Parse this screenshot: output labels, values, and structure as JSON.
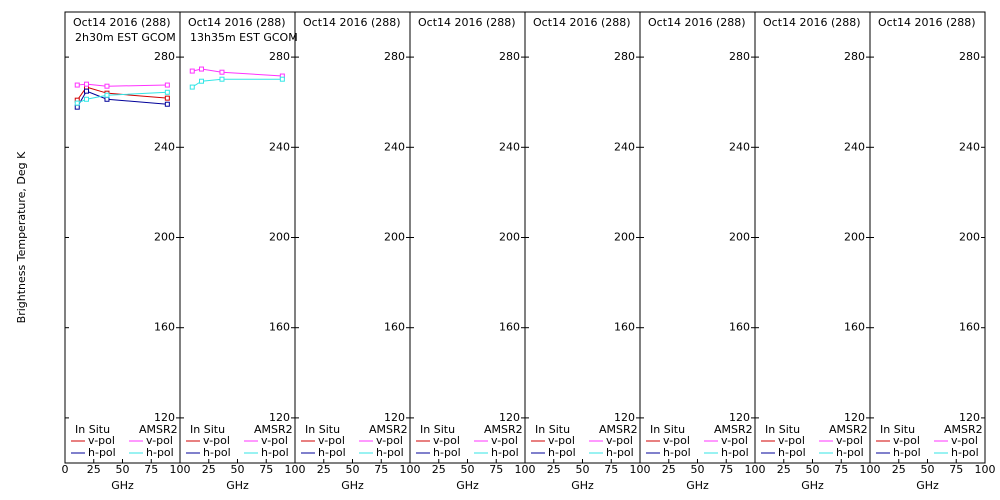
{
  "chart_data": [
    {
      "type": "line",
      "title": "Oct14 2016 (288)",
      "subtitle": "2h30m EST GCOM",
      "ylabel": "Brightness Temperature, Deg K",
      "xlabel": "GHz",
      "x": [
        10.65,
        18.7,
        36.5,
        89
      ],
      "xlim": [
        0,
        100
      ],
      "xticks": [
        0,
        25,
        50,
        75,
        100
      ],
      "ylim": [
        100,
        300
      ],
      "yticks": [
        120,
        160,
        200,
        240,
        280
      ],
      "groups": [
        {
          "name": "In Situ",
          "series": [
            {
              "name": "v-pol",
              "color": "#d00000",
              "values": [
                260.9,
                266.7,
                264.0,
                261.8
              ]
            },
            {
              "name": "h-pol",
              "color": "#000099",
              "values": [
                257.8,
                264.9,
                261.3,
                259.1
              ]
            }
          ]
        },
        {
          "name": "AMSR2",
          "series": [
            {
              "name": "v-pol",
              "color": "#ff33ff",
              "values": [
                267.6,
                268.0,
                267.1,
                267.6
              ]
            },
            {
              "name": "h-pol",
              "color": "#33e6e6",
              "values": [
                259.6,
                261.3,
                263.1,
                264.4
              ]
            }
          ]
        }
      ]
    },
    {
      "type": "line",
      "title": "Oct14 2016 (288)",
      "subtitle": "13h35m EST GCOM",
      "xlabel": "GHz",
      "x": [
        10.65,
        18.7,
        36.5,
        89
      ],
      "xlim": [
        0,
        100
      ],
      "xticks": [
        25,
        50,
        75,
        100
      ],
      "ylim": [
        100,
        300
      ],
      "yticks": [
        120,
        160,
        200,
        240,
        280
      ],
      "groups": [
        {
          "name": "In Situ",
          "series": [
            {
              "name": "v-pol",
              "color": "#d00000",
              "values": [
                null,
                null,
                null,
                null
              ]
            },
            {
              "name": "h-pol",
              "color": "#000099",
              "values": [
                null,
                null,
                null,
                null
              ]
            }
          ]
        },
        {
          "name": "AMSR2",
          "series": [
            {
              "name": "v-pol",
              "color": "#ff33ff",
              "values": [
                273.8,
                274.7,
                273.3,
                271.6
              ]
            },
            {
              "name": "h-pol",
              "color": "#33e6e6",
              "values": [
                266.7,
                269.3,
                270.2,
                270.2
              ]
            }
          ]
        }
      ]
    },
    {
      "type": "line",
      "title": "Oct14 2016 (288)",
      "xlabel": "GHz",
      "x": [],
      "xlim": [
        0,
        100
      ],
      "xticks": [
        25,
        50,
        75,
        100
      ],
      "ylim": [
        100,
        300
      ],
      "yticks": [
        120,
        160,
        200,
        240,
        280
      ],
      "groups": [
        {
          "name": "In Situ",
          "series": [
            {
              "name": "v-pol",
              "color": "#d00000",
              "values": []
            },
            {
              "name": "h-pol",
              "color": "#000099",
              "values": []
            }
          ]
        },
        {
          "name": "AMSR2",
          "series": [
            {
              "name": "v-pol",
              "color": "#ff33ff",
              "values": []
            },
            {
              "name": "h-pol",
              "color": "#33e6e6",
              "values": []
            }
          ]
        }
      ]
    },
    {
      "type": "line",
      "title": "Oct14 2016 (288)",
      "xlabel": "GHz",
      "x": [],
      "xlim": [
        0,
        100
      ],
      "xticks": [
        25,
        50,
        75,
        100
      ],
      "ylim": [
        100,
        300
      ],
      "yticks": [
        120,
        160,
        200,
        240,
        280
      ],
      "groups": [
        {
          "name": "In Situ",
          "series": [
            {
              "name": "v-pol",
              "color": "#d00000",
              "values": []
            },
            {
              "name": "h-pol",
              "color": "#000099",
              "values": []
            }
          ]
        },
        {
          "name": "AMSR2",
          "series": [
            {
              "name": "v-pol",
              "color": "#ff33ff",
              "values": []
            },
            {
              "name": "h-pol",
              "color": "#33e6e6",
              "values": []
            }
          ]
        }
      ]
    },
    {
      "type": "line",
      "title": "Oct14 2016 (288)",
      "xlabel": "GHz",
      "x": [],
      "xlim": [
        0,
        100
      ],
      "xticks": [
        25,
        50,
        75,
        100
      ],
      "ylim": [
        100,
        300
      ],
      "yticks": [
        120,
        160,
        200,
        240,
        280
      ],
      "groups": [
        {
          "name": "In Situ",
          "series": [
            {
              "name": "v-pol",
              "color": "#d00000",
              "values": []
            },
            {
              "name": "h-pol",
              "color": "#000099",
              "values": []
            }
          ]
        },
        {
          "name": "AMSR2",
          "series": [
            {
              "name": "v-pol",
              "color": "#ff33ff",
              "values": []
            },
            {
              "name": "h-pol",
              "color": "#33e6e6",
              "values": []
            }
          ]
        }
      ]
    },
    {
      "type": "line",
      "title": "Oct14 2016 (288)",
      "xlabel": "GHz",
      "x": [],
      "xlim": [
        0,
        100
      ],
      "xticks": [
        25,
        50,
        75,
        100
      ],
      "ylim": [
        100,
        300
      ],
      "yticks": [
        120,
        160,
        200,
        240,
        280
      ],
      "groups": [
        {
          "name": "In Situ",
          "series": [
            {
              "name": "v-pol",
              "color": "#d00000",
              "values": []
            },
            {
              "name": "h-pol",
              "color": "#000099",
              "values": []
            }
          ]
        },
        {
          "name": "AMSR2",
          "series": [
            {
              "name": "v-pol",
              "color": "#ff33ff",
              "values": []
            },
            {
              "name": "h-pol",
              "color": "#33e6e6",
              "values": []
            }
          ]
        }
      ]
    },
    {
      "type": "line",
      "title": "Oct14 2016 (288)",
      "xlabel": "GHz",
      "x": [],
      "xlim": [
        0,
        100
      ],
      "xticks": [
        25,
        50,
        75,
        100
      ],
      "ylim": [
        100,
        300
      ],
      "yticks": [
        120,
        160,
        200,
        240,
        280
      ],
      "groups": [
        {
          "name": "In Situ",
          "series": [
            {
              "name": "v-pol",
              "color": "#d00000",
              "values": []
            },
            {
              "name": "h-pol",
              "color": "#000099",
              "values": []
            }
          ]
        },
        {
          "name": "AMSR2",
          "series": [
            {
              "name": "v-pol",
              "color": "#ff33ff",
              "values": []
            },
            {
              "name": "h-pol",
              "color": "#33e6e6",
              "values": []
            }
          ]
        }
      ]
    },
    {
      "type": "line",
      "title": "Oct14 2016 (288)",
      "xlabel": "GHz",
      "x": [],
      "xlim": [
        0,
        100
      ],
      "xticks": [
        25,
        50,
        75,
        100
      ],
      "ylim": [
        100,
        300
      ],
      "yticks": [
        120,
        160,
        200,
        240,
        280
      ],
      "groups": [
        {
          "name": "In Situ",
          "series": [
            {
              "name": "v-pol",
              "color": "#d00000",
              "values": []
            },
            {
              "name": "h-pol",
              "color": "#000099",
              "values": []
            }
          ]
        },
        {
          "name": "AMSR2",
          "series": [
            {
              "name": "v-pol",
              "color": "#ff33ff",
              "values": []
            },
            {
              "name": "h-pol",
              "color": "#33e6e6",
              "values": []
            }
          ]
        }
      ]
    }
  ]
}
